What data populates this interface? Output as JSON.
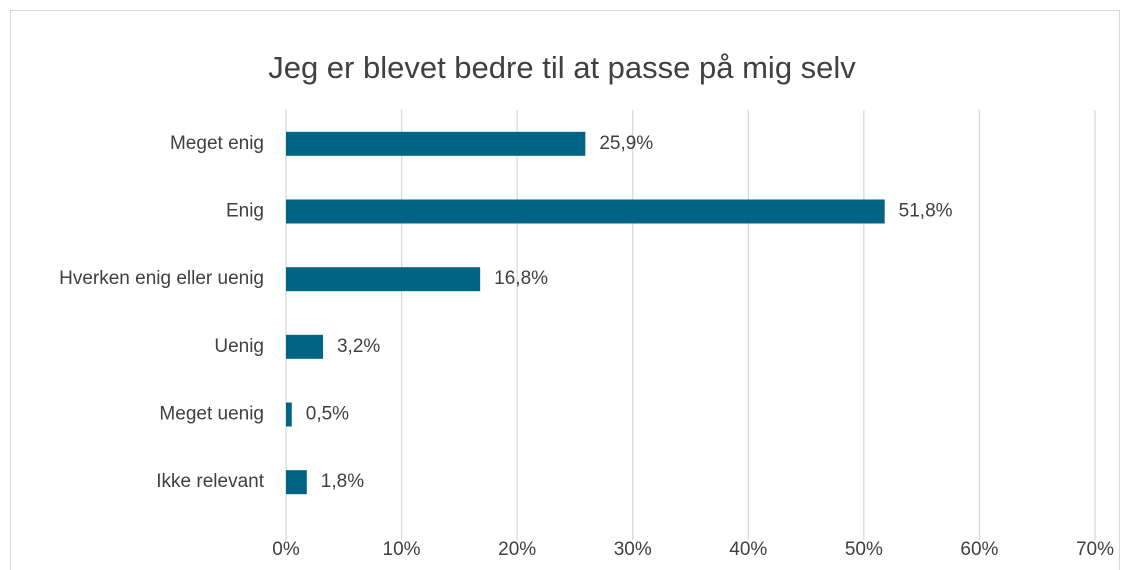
{
  "chart_data": {
    "type": "bar",
    "orientation": "horizontal",
    "title": "Jeg er blevet bedre til at passe på mig selv",
    "categories": [
      "Meget enig",
      "Enig",
      "Hverken enig eller uenig",
      "Uenig",
      "Meget uenig",
      "Ikke relevant"
    ],
    "values": [
      25.9,
      51.8,
      16.8,
      3.2,
      0.5,
      1.8
    ],
    "value_labels": [
      "25,9%",
      "51,8%",
      "16,8%",
      "3,2%",
      "0,5%",
      "1,8%"
    ],
    "color": "#006584",
    "xlim": [
      0,
      70
    ],
    "xticks": [
      {
        "value": 0,
        "label": "0%"
      },
      {
        "value": 10,
        "label": "10%"
      },
      {
        "value": 20,
        "label": "20%"
      },
      {
        "value": 30,
        "label": "30%"
      },
      {
        "value": 40,
        "label": "40%"
      },
      {
        "value": 50,
        "label": "50%"
      },
      {
        "value": 60,
        "label": "60%"
      },
      {
        "value": 70,
        "label": "70%"
      }
    ],
    "grid": true
  }
}
